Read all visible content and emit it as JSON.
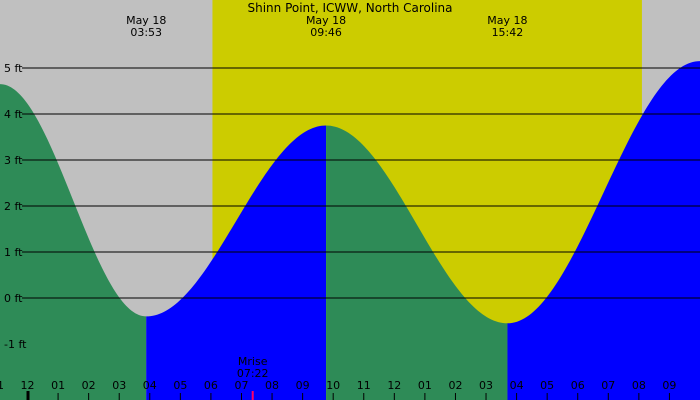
{
  "chart_data": {
    "type": "area",
    "title": "Shinn Point, ICWW, North Carolina",
    "ylim": [
      -1.5,
      6.6
    ],
    "y_ticks": [
      {
        "value": 5,
        "label": "5 ft"
      },
      {
        "value": 4,
        "label": "4 ft"
      },
      {
        "value": 3,
        "label": "3 ft"
      },
      {
        "value": 2,
        "label": "2 ft"
      },
      {
        "value": 1,
        "label": "1 ft"
      },
      {
        "value": 0,
        "label": "0 ft"
      },
      {
        "value": -1,
        "label": "-1 ft"
      }
    ],
    "x_range_hours": [
      -0.9,
      22.0
    ],
    "x_ticks": [
      {
        "hour": -1,
        "label": "11"
      },
      {
        "hour": 0,
        "label": "12"
      },
      {
        "hour": 1,
        "label": "01"
      },
      {
        "hour": 2,
        "label": "02"
      },
      {
        "hour": 3,
        "label": "03"
      },
      {
        "hour": 4,
        "label": "04"
      },
      {
        "hour": 5,
        "label": "05"
      },
      {
        "hour": 6,
        "label": "06"
      },
      {
        "hour": 7,
        "label": "07"
      },
      {
        "hour": 8,
        "label": "08"
      },
      {
        "hour": 9,
        "label": "09"
      },
      {
        "hour": 10,
        "label": "10"
      },
      {
        "hour": 11,
        "label": "11"
      },
      {
        "hour": 12,
        "label": "12"
      },
      {
        "hour": 13,
        "label": "01"
      },
      {
        "hour": 14,
        "label": "02"
      },
      {
        "hour": 15,
        "label": "03"
      },
      {
        "hour": 16,
        "label": "04"
      },
      {
        "hour": 17,
        "label": "05"
      },
      {
        "hour": 18,
        "label": "06"
      },
      {
        "hour": 19,
        "label": "07"
      },
      {
        "hour": 20,
        "label": "08"
      },
      {
        "hour": 21,
        "label": "09"
      }
    ],
    "extremes": [
      {
        "date": "May 18",
        "time": "03:53",
        "hour": 3.883,
        "type": "low",
        "height_ft": -0.4
      },
      {
        "date": "May 18",
        "time": "09:46",
        "hour": 9.767,
        "type": "high",
        "height_ft": 3.75
      },
      {
        "date": "May 18",
        "time": "15:42",
        "hour": 15.7,
        "type": "low",
        "height_ft": -0.55
      }
    ],
    "edge_levels": [
      {
        "hour": -0.9,
        "height_ft": 4.65
      },
      {
        "hour": 22.0,
        "height_ft": 5.15
      }
    ],
    "daylight": {
      "start_hour": 6.05,
      "end_hour": 20.1
    },
    "moonrise": {
      "label": "Mrise",
      "time": "07:22",
      "hour": 7.367
    },
    "colors": {
      "night": "#c0c0c0",
      "day": "#cccc00",
      "falling": "#2e8b57",
      "rising": "#0000ff",
      "gridline": "#000000",
      "moonrise_tick": "#ff0066"
    }
  }
}
